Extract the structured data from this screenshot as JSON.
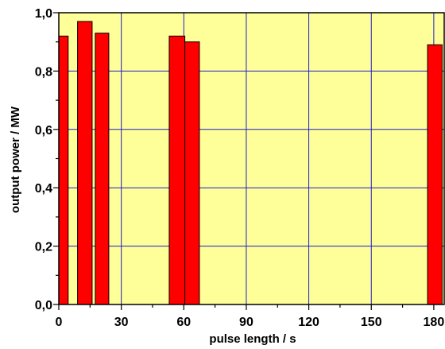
{
  "chart_data": {
    "type": "bar",
    "xlabel": "pulse length / s",
    "ylabel": "output power / MW",
    "xlim": [
      0,
      185
    ],
    "ylim": [
      0.0,
      1.0
    ],
    "x_ticks": [
      "0",
      "30",
      "60",
      "90",
      "120",
      "150",
      "180"
    ],
    "y_ticks": [
      "0,0",
      "0,2",
      "0,4",
      "0,6",
      "0,8",
      "1,0"
    ],
    "grid": true,
    "bars": [
      {
        "x_start": 0,
        "x_end": 4.5,
        "value": 0.92
      },
      {
        "x_start": 9,
        "x_end": 16,
        "value": 0.97
      },
      {
        "x_start": 17.5,
        "x_end": 24,
        "value": 0.93
      },
      {
        "x_start": 53,
        "x_end": 60.5,
        "value": 0.92
      },
      {
        "x_start": 60.5,
        "x_end": 67.5,
        "value": 0.9
      },
      {
        "x_start": 177,
        "x_end": 184,
        "value": 0.89
      }
    ],
    "colors": {
      "plot_background": "#ffff99",
      "bar_fill": "#ff0000",
      "bar_stroke": "#000000",
      "grid": "#1c1ccc"
    }
  }
}
